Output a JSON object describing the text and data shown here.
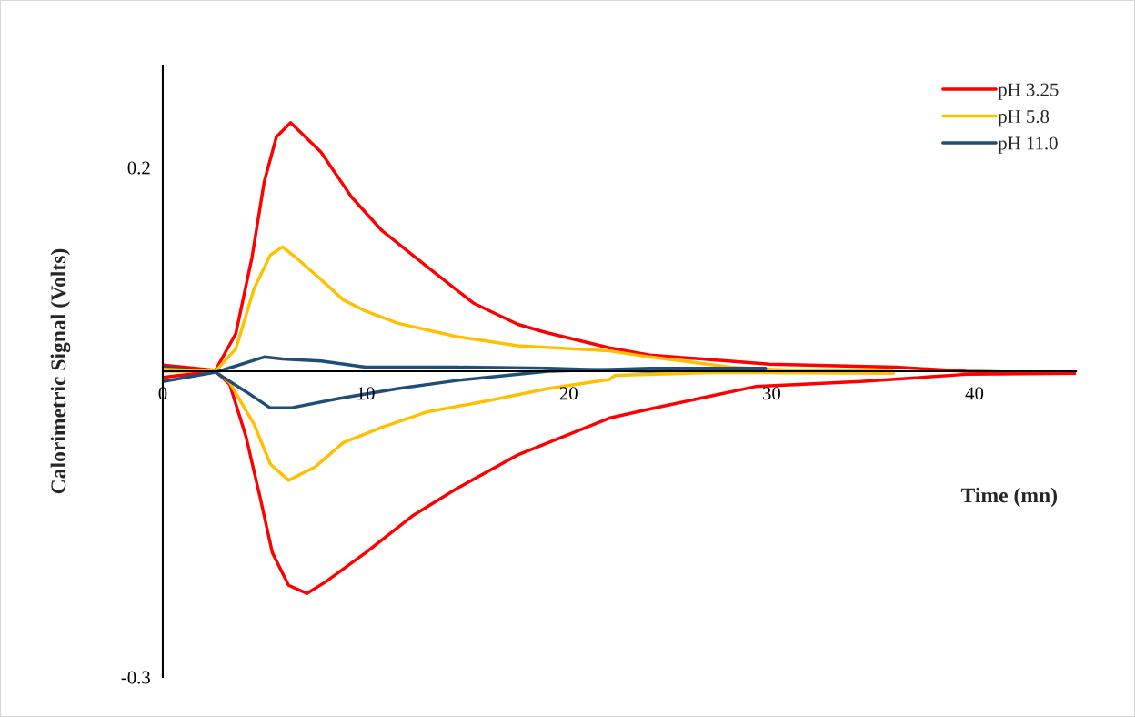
{
  "chart_data": {
    "type": "line",
    "xlabel": "Time (mn)",
    "ylabel": "Calorimetric Signal (Volts)",
    "xlim": [
      0,
      45
    ],
    "ylim": [
      -0.3,
      0.3
    ],
    "xticks": [
      0,
      10,
      20,
      30,
      40
    ],
    "yticks": [
      0.2,
      -0.3
    ],
    "grid": false,
    "legend": "top right",
    "marker": "none",
    "line_style": "solid",
    "series": [
      {
        "name": "pH 3.25",
        "color": "#ff0000",
        "x": [
          0,
          2.6,
          3.6,
          4.4,
          5.0,
          5.6,
          6.3,
          7.8,
          9.3,
          10.8,
          13.0,
          15.3,
          17.5,
          18.9,
          22.0,
          24.0,
          29.9,
          36.1,
          39.6,
          45.0
        ],
        "values": [
          0.006,
          0.001,
          0.037,
          0.112,
          0.186,
          0.23,
          0.244,
          0.215,
          0.171,
          0.138,
          0.103,
          0.067,
          0.046,
          0.038,
          0.023,
          0.016,
          0.007,
          0.004,
          0.0,
          -0.002
        ]
      },
      {
        "name": "pH 5.8",
        "color": "#ffc000",
        "x": [
          0,
          2.6,
          3.6,
          4.5,
          5.3,
          5.9,
          6.6,
          7.8,
          8.9,
          10.0,
          11.6,
          14.5,
          17.5,
          22.0,
          24.0,
          28.0,
          31.0,
          36.0
        ],
        "values": [
          0.0,
          0.0,
          0.022,
          0.081,
          0.114,
          0.122,
          0.111,
          0.09,
          0.07,
          0.059,
          0.047,
          0.034,
          0.025,
          0.02,
          0.014,
          0.004,
          0.001,
          0.0
        ]
      },
      {
        "name": "pH 11.0",
        "color": "#1f4e79",
        "x": [
          0,
          2.6,
          5.0,
          5.9,
          7.8,
          10.0,
          14.5,
          19.0,
          24.0,
          29.7
        ],
        "values": [
          0.004,
          -0.001,
          0.014,
          0.012,
          0.01,
          0.004,
          0.004,
          0.003,
          0.0,
          0.002
        ]
      },
      {
        "color": "#ff0000",
        "x": [
          0,
          2.6,
          3.3,
          4.1,
          4.8,
          5.4,
          6.2,
          7.1,
          8.0,
          10.0,
          12.3,
          14.5,
          17.5,
          22.0,
          24.0,
          29.2,
          34.4,
          39.6,
          45.0
        ],
        "values": [
          -0.006,
          0.0,
          -0.013,
          -0.064,
          -0.124,
          -0.178,
          -0.21,
          -0.218,
          -0.207,
          -0.178,
          -0.142,
          -0.115,
          -0.082,
          -0.046,
          -0.037,
          -0.015,
          -0.01,
          -0.003,
          -0.002
        ]
      },
      {
        "color": "#ffc000",
        "x": [
          0,
          2.6,
          3.3,
          4.5,
          5.3,
          6.2,
          7.5,
          8.9,
          10.8,
          13.0,
          16.0,
          19.0,
          22.0,
          22.3,
          27.5,
          36.0
        ],
        "values": [
          0.002,
          0.0,
          -0.011,
          -0.052,
          -0.091,
          -0.107,
          -0.094,
          -0.07,
          -0.055,
          -0.04,
          -0.029,
          -0.017,
          -0.008,
          -0.004,
          -0.001,
          -0.002
        ]
      },
      {
        "color": "#1f4e79",
        "x": [
          0,
          2.6,
          4.1,
          5.3,
          6.3,
          8.6,
          11.6,
          14.5,
          19.0,
          24.0,
          29.7
        ],
        "values": [
          -0.01,
          -0.001,
          -0.02,
          -0.036,
          -0.036,
          -0.027,
          -0.017,
          -0.009,
          0.0,
          0.003,
          0.003
        ]
      }
    ]
  }
}
